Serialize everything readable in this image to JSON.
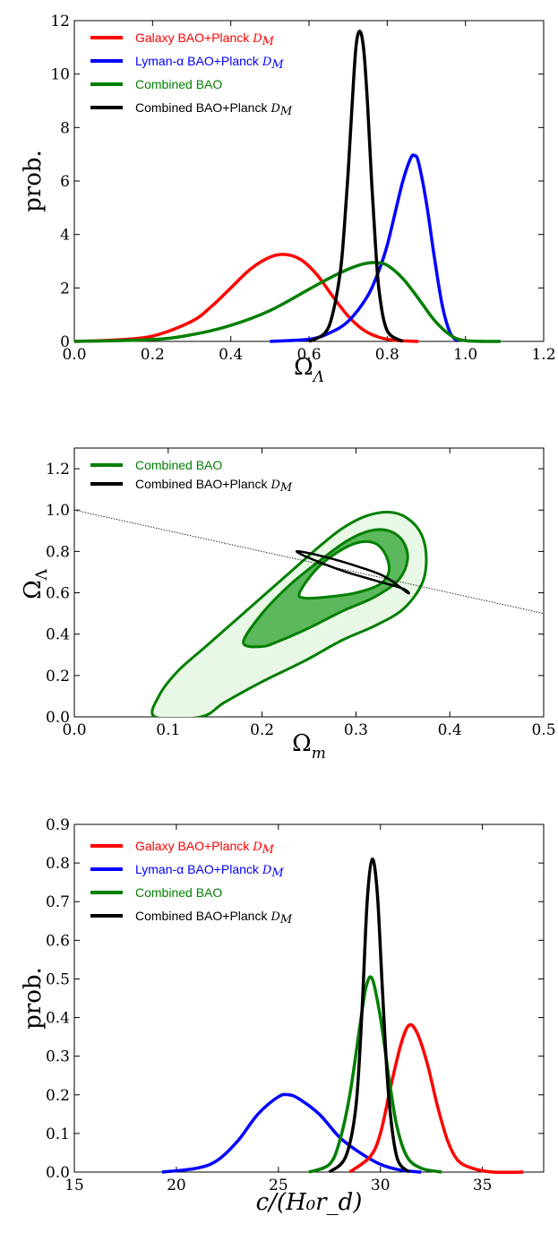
{
  "colors": {
    "red": "#ff0000",
    "blue": "#0000ff",
    "green": "#007f00",
    "black": "#000000",
    "greenDark": "#5cb85c",
    "greenLight": "#e9f7e6"
  },
  "chart_data": [
    {
      "type": "line",
      "xlabel": "Ω",
      "xlabel_sub": "Λ",
      "ylabel": "prob.",
      "xlim": [
        0.0,
        1.2
      ],
      "ylim": [
        0,
        12
      ],
      "xticks": [
        "0.0",
        "0.2",
        "0.4",
        "0.6",
        "0.8",
        "1.0",
        "1.2"
      ],
      "yticks": [
        "0",
        "2",
        "4",
        "6",
        "8",
        "10",
        "12"
      ],
      "legend_position": "top-left",
      "series": [
        {
          "name": "Galaxy BAO+Planck",
          "sub": "D",
          "subsub": "M",
          "color": "red",
          "x": [
            0.0,
            0.1,
            0.2,
            0.3,
            0.35,
            0.4,
            0.45,
            0.5,
            0.54,
            0.58,
            0.62,
            0.66,
            0.7,
            0.74,
            0.78,
            0.82,
            0.86,
            0.88
          ],
          "y": [
            0.0,
            0.05,
            0.2,
            0.75,
            1.3,
            2.0,
            2.7,
            3.15,
            3.25,
            3.05,
            2.5,
            1.7,
            0.95,
            0.42,
            0.15,
            0.04,
            0.01,
            0.0
          ]
        },
        {
          "name": "Lyman-α BAO+Planck",
          "sub": "D",
          "subsub": "M",
          "color": "blue",
          "x": [
            0.5,
            0.6,
            0.65,
            0.7,
            0.75,
            0.78,
            0.8,
            0.82,
            0.84,
            0.86,
            0.87,
            0.88,
            0.9,
            0.92,
            0.94,
            0.96,
            0.98
          ],
          "y": [
            0.0,
            0.08,
            0.3,
            0.75,
            1.7,
            2.7,
            3.6,
            4.8,
            6.0,
            6.85,
            6.95,
            6.7,
            5.2,
            3.2,
            1.4,
            0.35,
            0.0
          ]
        },
        {
          "name": "Combined BAO",
          "color": "green",
          "x": [
            0.0,
            0.2,
            0.3,
            0.4,
            0.5,
            0.6,
            0.65,
            0.7,
            0.74,
            0.77,
            0.8,
            0.84,
            0.88,
            0.92,
            0.96,
            1.0,
            1.09
          ],
          "y": [
            0.0,
            0.07,
            0.25,
            0.6,
            1.15,
            1.95,
            2.35,
            2.7,
            2.9,
            2.95,
            2.85,
            2.35,
            1.6,
            0.8,
            0.25,
            0.03,
            0.0
          ]
        },
        {
          "name": "Combined BAO+Planck",
          "sub": "D",
          "subsub": "M",
          "color": "black",
          "x": [
            0.6,
            0.64,
            0.66,
            0.68,
            0.69,
            0.7,
            0.71,
            0.72,
            0.73,
            0.74,
            0.75,
            0.76,
            0.77,
            0.78,
            0.8,
            0.84
          ],
          "y": [
            0.0,
            0.3,
            1.0,
            2.6,
            4.2,
            6.3,
            8.8,
            11.0,
            11.6,
            10.9,
            8.8,
            6.0,
            3.6,
            1.8,
            0.4,
            0.0
          ]
        }
      ]
    },
    {
      "type": "contour",
      "xlabel": "Ω",
      "xlabel_sub": "m",
      "ylabel": "Ω",
      "ylabel_sub": "Λ",
      "xlim": [
        0.0,
        0.5
      ],
      "ylim": [
        0.0,
        1.3
      ],
      "xticks": [
        "0.0",
        "0.1",
        "0.2",
        "0.3",
        "0.4",
        "0.5"
      ],
      "yticks": [
        "0.0",
        "0.2",
        "0.4",
        "0.6",
        "0.8",
        "1.0",
        "1.2"
      ],
      "legend_position": "top-left",
      "series": [
        {
          "name": "Combined BAO",
          "color": "green"
        },
        {
          "name": "Combined BAO+Planck",
          "sub": "D",
          "subsub": "M",
          "color": "black"
        }
      ],
      "flat_line": {
        "x": [
          0.0,
          0.5
        ],
        "y": [
          1.0,
          0.5
        ]
      },
      "outer_contour": [
        [
          0.086,
          0.0
        ],
        [
          0.09,
          0.1
        ],
        [
          0.11,
          0.22
        ],
        [
          0.14,
          0.34
        ],
        [
          0.17,
          0.46
        ],
        [
          0.2,
          0.58
        ],
        [
          0.23,
          0.7
        ],
        [
          0.26,
          0.82
        ],
        [
          0.285,
          0.91
        ],
        [
          0.31,
          0.97
        ],
        [
          0.335,
          0.99
        ],
        [
          0.355,
          0.96
        ],
        [
          0.37,
          0.88
        ],
        [
          0.375,
          0.76
        ],
        [
          0.37,
          0.64
        ],
        [
          0.35,
          0.52
        ],
        [
          0.32,
          0.44
        ],
        [
          0.285,
          0.37
        ],
        [
          0.245,
          0.27
        ],
        [
          0.2,
          0.17
        ],
        [
          0.16,
          0.07
        ],
        [
          0.135,
          0.0
        ]
      ],
      "inner_contour_outer": [
        [
          0.18,
          0.36
        ],
        [
          0.2,
          0.5
        ],
        [
          0.23,
          0.64
        ],
        [
          0.26,
          0.75
        ],
        [
          0.29,
          0.85
        ],
        [
          0.315,
          0.9
        ],
        [
          0.335,
          0.9
        ],
        [
          0.35,
          0.85
        ],
        [
          0.355,
          0.76
        ],
        [
          0.345,
          0.66
        ],
        [
          0.32,
          0.58
        ],
        [
          0.285,
          0.51
        ],
        [
          0.25,
          0.43
        ],
        [
          0.22,
          0.37
        ],
        [
          0.2,
          0.34
        ]
      ],
      "inner_contour_hole": [
        [
          0.24,
          0.6
        ],
        [
          0.255,
          0.7
        ],
        [
          0.275,
          0.78
        ],
        [
          0.3,
          0.84
        ],
        [
          0.32,
          0.84
        ],
        [
          0.332,
          0.78
        ],
        [
          0.335,
          0.7
        ],
        [
          0.325,
          0.64
        ],
        [
          0.3,
          0.6
        ],
        [
          0.27,
          0.58
        ],
        [
          0.245,
          0.575
        ]
      ],
      "planck_contour": [
        [
          0.24,
          0.8
        ],
        [
          0.27,
          0.77
        ],
        [
          0.3,
          0.73
        ],
        [
          0.33,
          0.68
        ],
        [
          0.355,
          0.6
        ],
        [
          0.35,
          0.62
        ],
        [
          0.32,
          0.66
        ],
        [
          0.29,
          0.7
        ],
        [
          0.26,
          0.75
        ],
        [
          0.24,
          0.79
        ]
      ]
    },
    {
      "type": "line",
      "xlabel": "c/(H₀r_d)",
      "ylabel": "prob.",
      "xlim": [
        15,
        38
      ],
      "ylim": [
        0.0,
        0.9
      ],
      "xticks": [
        "15",
        "20",
        "25",
        "30",
        "35"
      ],
      "yticks": [
        "0.0",
        "0.1",
        "0.2",
        "0.3",
        "0.4",
        "0.5",
        "0.6",
        "0.7",
        "0.8",
        "0.9"
      ],
      "legend_position": "top-left",
      "series": [
        {
          "name": "Galaxy BAO+Planck",
          "sub": "D",
          "subsub": "M",
          "color": "red",
          "x": [
            28.5,
            29.5,
            30.0,
            30.5,
            31.0,
            31.4,
            31.8,
            32.3,
            32.8,
            33.3,
            33.8,
            34.5,
            35.5,
            37.0
          ],
          "y": [
            0.0,
            0.04,
            0.1,
            0.22,
            0.33,
            0.38,
            0.36,
            0.28,
            0.17,
            0.08,
            0.03,
            0.01,
            0.0,
            0.0
          ]
        },
        {
          "name": "Lyman-α BAO+Planck",
          "sub": "D",
          "subsub": "M",
          "color": "blue",
          "x": [
            19.3,
            21.0,
            22.0,
            23.0,
            24.0,
            25.0,
            25.5,
            26.0,
            27.0,
            28.0,
            29.0,
            30.0,
            31.0,
            32.0
          ],
          "y": [
            0.0,
            0.01,
            0.03,
            0.08,
            0.15,
            0.195,
            0.2,
            0.19,
            0.15,
            0.09,
            0.05,
            0.02,
            0.005,
            0.0
          ]
        },
        {
          "name": "Combined BAO",
          "color": "green",
          "x": [
            26.5,
            27.5,
            28.0,
            28.5,
            29.0,
            29.3,
            29.6,
            30.0,
            30.4,
            30.8,
            31.3,
            32.0,
            33.0
          ],
          "y": [
            0.0,
            0.02,
            0.08,
            0.2,
            0.38,
            0.48,
            0.5,
            0.4,
            0.25,
            0.12,
            0.04,
            0.01,
            0.0
          ]
        },
        {
          "name": "Combined BAO+Planck",
          "sub": "D",
          "subsub": "M",
          "color": "black",
          "x": [
            27.5,
            28.3,
            28.8,
            29.1,
            29.35,
            29.6,
            29.85,
            30.1,
            30.4,
            30.8,
            31.4
          ],
          "y": [
            0.0,
            0.04,
            0.17,
            0.42,
            0.7,
            0.81,
            0.72,
            0.47,
            0.2,
            0.04,
            0.0
          ]
        }
      ]
    }
  ]
}
